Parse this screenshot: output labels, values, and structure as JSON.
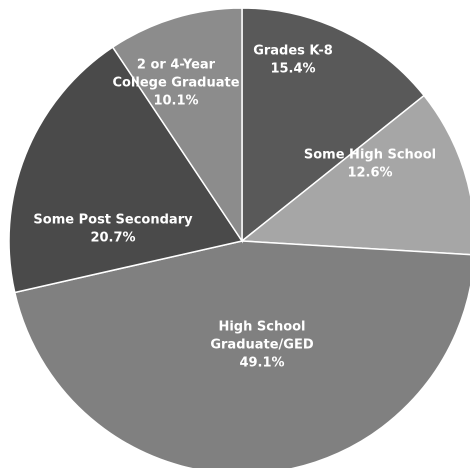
{
  "chart_data": {
    "type": "pie",
    "title": "",
    "start_angle_deg": 0,
    "direction": "clockwise",
    "slices": [
      {
        "label_lines": [
          "Grades K-8"
        ],
        "value_label": "15.4%",
        "value": 15.4,
        "color": "#595959"
      },
      {
        "label_lines": [
          "Some High School"
        ],
        "value_label": "12.6%",
        "value": 12.6,
        "color": "#a6a6a6"
      },
      {
        "label_lines": [
          "High School",
          "Graduate/GED"
        ],
        "value_label": "49.1%",
        "value": 49.1,
        "color": "#808080"
      },
      {
        "label_lines": [
          "Some Post Secondary"
        ],
        "value_label": "20.7%",
        "value": 20.7,
        "color": "#4a4a4a"
      },
      {
        "label_lines": [
          "2 or 4-Year",
          "College Graduate"
        ],
        "value_label": "10.1%",
        "value": 10.1,
        "color": "#8c8c8c"
      }
    ]
  }
}
